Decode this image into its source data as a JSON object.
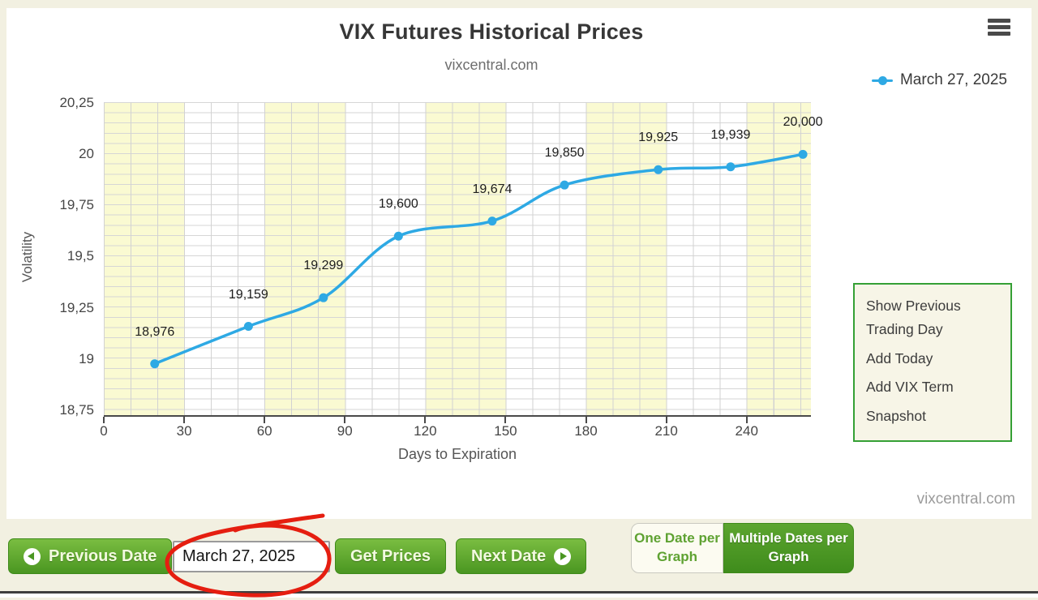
{
  "header": {
    "title": "VIX Futures Historical Prices",
    "subtitle": "vixcentral.com"
  },
  "legend": {
    "label": "March 27, 2025"
  },
  "chart_data": {
    "type": "line",
    "title": "VIX Futures Historical Prices",
    "xlabel": "Days to Expiration",
    "ylabel": "Volatility",
    "xlim": [
      0,
      264
    ],
    "ylim": [
      18.725,
      20.255
    ],
    "x_ticks": [
      0,
      30,
      60,
      90,
      120,
      150,
      180,
      210,
      240
    ],
    "y_ticks": [
      18.75,
      19,
      19.25,
      19.5,
      19.75,
      20,
      20.25
    ],
    "y_tick_labels": [
      "18,75",
      "19",
      "19,25",
      "19,5",
      "19,75",
      "20",
      "20,25"
    ],
    "grid": true,
    "band_interval_days": 30,
    "legend_position": "top-right",
    "series": [
      {
        "name": "March 27, 2025",
        "color": "#2EA9E4",
        "x": [
          19,
          54,
          82,
          110,
          145,
          172,
          207,
          234,
          261
        ],
        "y": [
          18.976,
          19.159,
          19.299,
          19.6,
          19.674,
          19.85,
          19.925,
          19.939,
          20.0
        ],
        "point_labels": [
          "18,976",
          "19,159",
          "19,299",
          "19,600",
          "19,674",
          "19,850",
          "19,925",
          "19,939",
          "20,000"
        ]
      }
    ]
  },
  "side_menu": {
    "items": [
      "Show Previous Trading Day",
      "Add Today",
      "Add VIX Term",
      "Snapshot"
    ]
  },
  "watermark": "vixcentral.com",
  "toolbar": {
    "previous_date_label": "Previous Date",
    "date_value": "March 27, 2025",
    "get_prices_label": "Get Prices",
    "next_date_label": "Next Date",
    "one_date_label": "One Date per Graph",
    "multiple_dates_label": "Multiple Dates per Graph"
  },
  "colors": {
    "line_blue": "#2EA9E4",
    "button_green_top": "#7ABD41",
    "button_green_bottom": "#4A9621",
    "band_yellow": "#FAFAD2",
    "side_menu_border_green": "#35A035",
    "annotation_red": "#E51E10",
    "page_background": "#F2F0E1"
  }
}
